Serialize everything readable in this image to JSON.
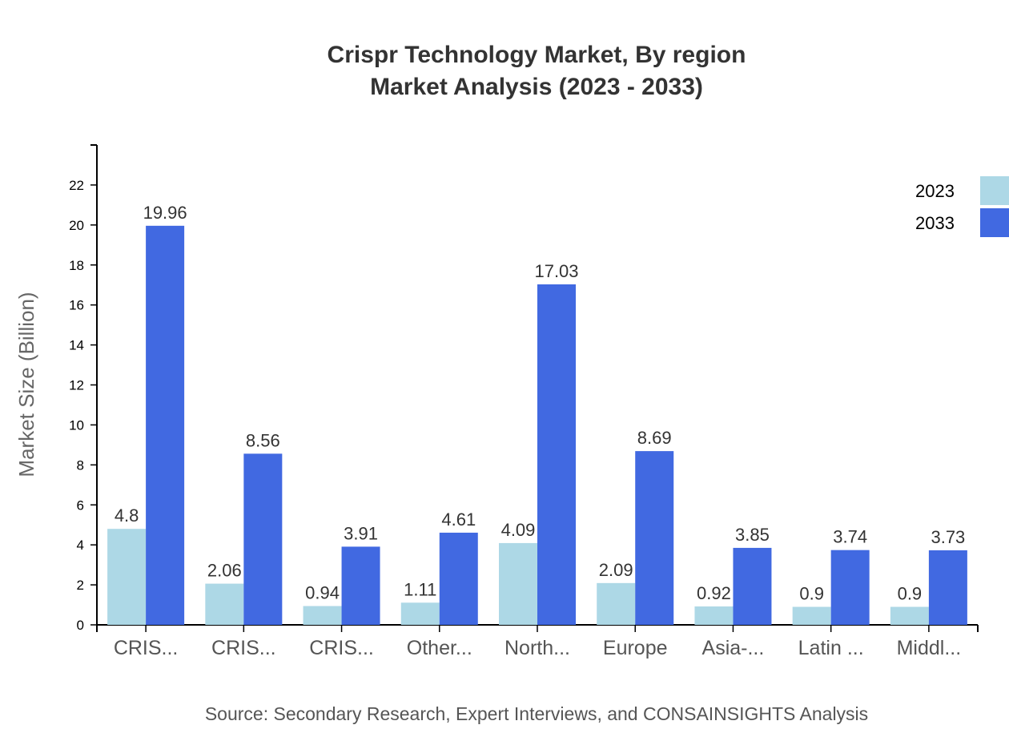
{
  "chart_data": {
    "type": "bar",
    "title": "Crispr Technology Market, By region",
    "subtitle": "Market Analysis (2023 - 2033)",
    "xlabel": "",
    "ylabel": "Market Size (Billion)",
    "ylim": [
      0,
      24
    ],
    "yticks": [
      0,
      2,
      4,
      6,
      8,
      10,
      12,
      14,
      16,
      18,
      20,
      22
    ],
    "grid": false,
    "legend_position": "top-right",
    "categories": [
      "CRIS...",
      "CRIS...",
      "CRIS...",
      "Other...",
      "North...",
      "Europe",
      "Asia-...",
      "Latin ...",
      "Middl..."
    ],
    "series": [
      {
        "name": "2023",
        "color": "#add8e6",
        "values": [
          4.8,
          2.06,
          0.94,
          1.11,
          4.09,
          2.09,
          0.92,
          0.9,
          0.9
        ]
      },
      {
        "name": "2033",
        "color": "#4169e1",
        "values": [
          19.96,
          8.56,
          3.91,
          4.61,
          17.03,
          8.69,
          3.85,
          3.74,
          3.73
        ]
      }
    ]
  },
  "source": "Source: Secondary Research, Expert Interviews, and CONSAINSIGHTS Analysis"
}
